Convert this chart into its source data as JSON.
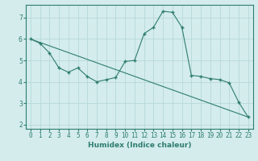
{
  "xlabel": "Humidex (Indice chaleur)",
  "background_color": "#d4ecec",
  "line_color": "#2e7d6e",
  "grid_color": "#b8d8d8",
  "x_ticks": [
    0,
    1,
    2,
    3,
    4,
    5,
    6,
    7,
    8,
    9,
    10,
    11,
    12,
    13,
    14,
    15,
    16,
    17,
    18,
    19,
    20,
    21,
    22,
    23
  ],
  "y_ticks": [
    2,
    3,
    4,
    5,
    6,
    7
  ],
  "ylim": [
    1.8,
    7.6
  ],
  "xlim": [
    -0.5,
    23.5
  ],
  "line1_x": [
    0,
    1,
    2,
    3,
    4,
    5,
    6,
    7,
    8,
    9,
    10,
    11,
    12,
    13,
    14,
    15,
    16,
    17,
    18,
    19,
    20,
    21,
    22,
    23
  ],
  "line1_y": [
    6.0,
    5.8,
    5.35,
    4.65,
    4.45,
    4.65,
    4.25,
    4.0,
    4.1,
    4.2,
    4.95,
    5.0,
    6.25,
    6.55,
    7.3,
    7.25,
    6.55,
    4.3,
    4.25,
    4.15,
    4.1,
    3.95,
    3.05,
    2.35
  ],
  "line2_x": [
    0,
    23
  ],
  "line2_y": [
    6.0,
    2.35
  ],
  "tick_fontsize": 5.5,
  "label_fontsize": 6.5
}
